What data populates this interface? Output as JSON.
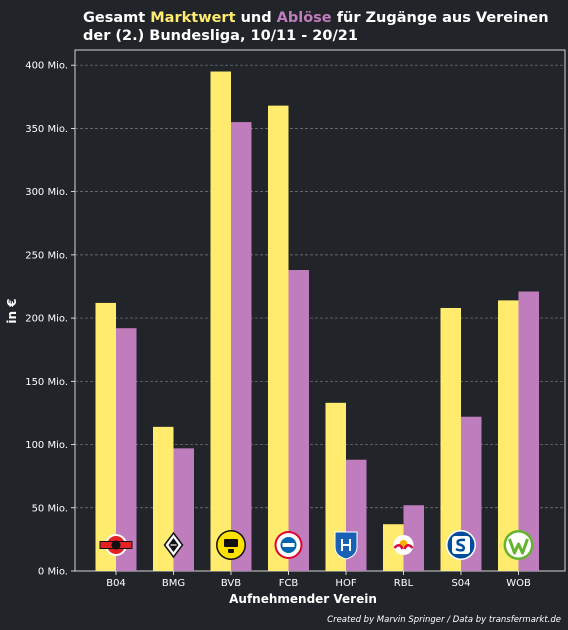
{
  "chart_data": {
    "type": "bar",
    "title": {
      "parts": [
        {
          "text": "Gesamt ",
          "color": "#ffffff"
        },
        {
          "text": "Marktwert",
          "color": "#ffeb6e"
        },
        {
          "text": " und ",
          "color": "#ffffff"
        },
        {
          "text": "Ablöse",
          "color": "#c07dbe"
        },
        {
          "text": " für Zugänge aus Vereinen",
          "color": "#ffffff"
        }
      ],
      "line2": "der (2.) Bundesliga, 10/11 - 20/21"
    },
    "xlabel": "Aufnehmender Verein",
    "ylabel": "in €",
    "credit": "Created by Marvin Springer / Data by transfermarkt.de",
    "categories": [
      "B04",
      "BMG",
      "BVB",
      "FCB",
      "HOF",
      "RBL",
      "S04",
      "WOB"
    ],
    "series": [
      {
        "key": "marktwert",
        "color": "#ffeb6e",
        "values": [
          212,
          114,
          395,
          368,
          133,
          37,
          208,
          214
        ]
      },
      {
        "key": "abloese",
        "color": "#c07dbe",
        "values": [
          192,
          97,
          355,
          238,
          88,
          52,
          122,
          221
        ]
      }
    ],
    "yticks": [
      0,
      50,
      100,
      150,
      200,
      250,
      300,
      350,
      400
    ],
    "ytick_labels": [
      "0 Mio.",
      "50 Mio.",
      "100 Mio.",
      "150 Mio.",
      "200 Mio.",
      "250 Mio.",
      "300 Mio.",
      "350 Mio.",
      "400 Mio."
    ],
    "ylim": [
      0,
      412
    ],
    "grid": true,
    "logos": [
      {
        "club": "B04",
        "color": "#e32221"
      },
      {
        "club": "BMG",
        "color": "#ffffff"
      },
      {
        "club": "BVB",
        "color": "#fde100"
      },
      {
        "club": "FCB",
        "color": "#dc052d"
      },
      {
        "club": "HOF",
        "color": "#1961b5"
      },
      {
        "club": "RBL",
        "color": "#dd0741"
      },
      {
        "club": "S04",
        "color": "#004d9d"
      },
      {
        "club": "WOB",
        "color": "#65b32e"
      }
    ]
  }
}
